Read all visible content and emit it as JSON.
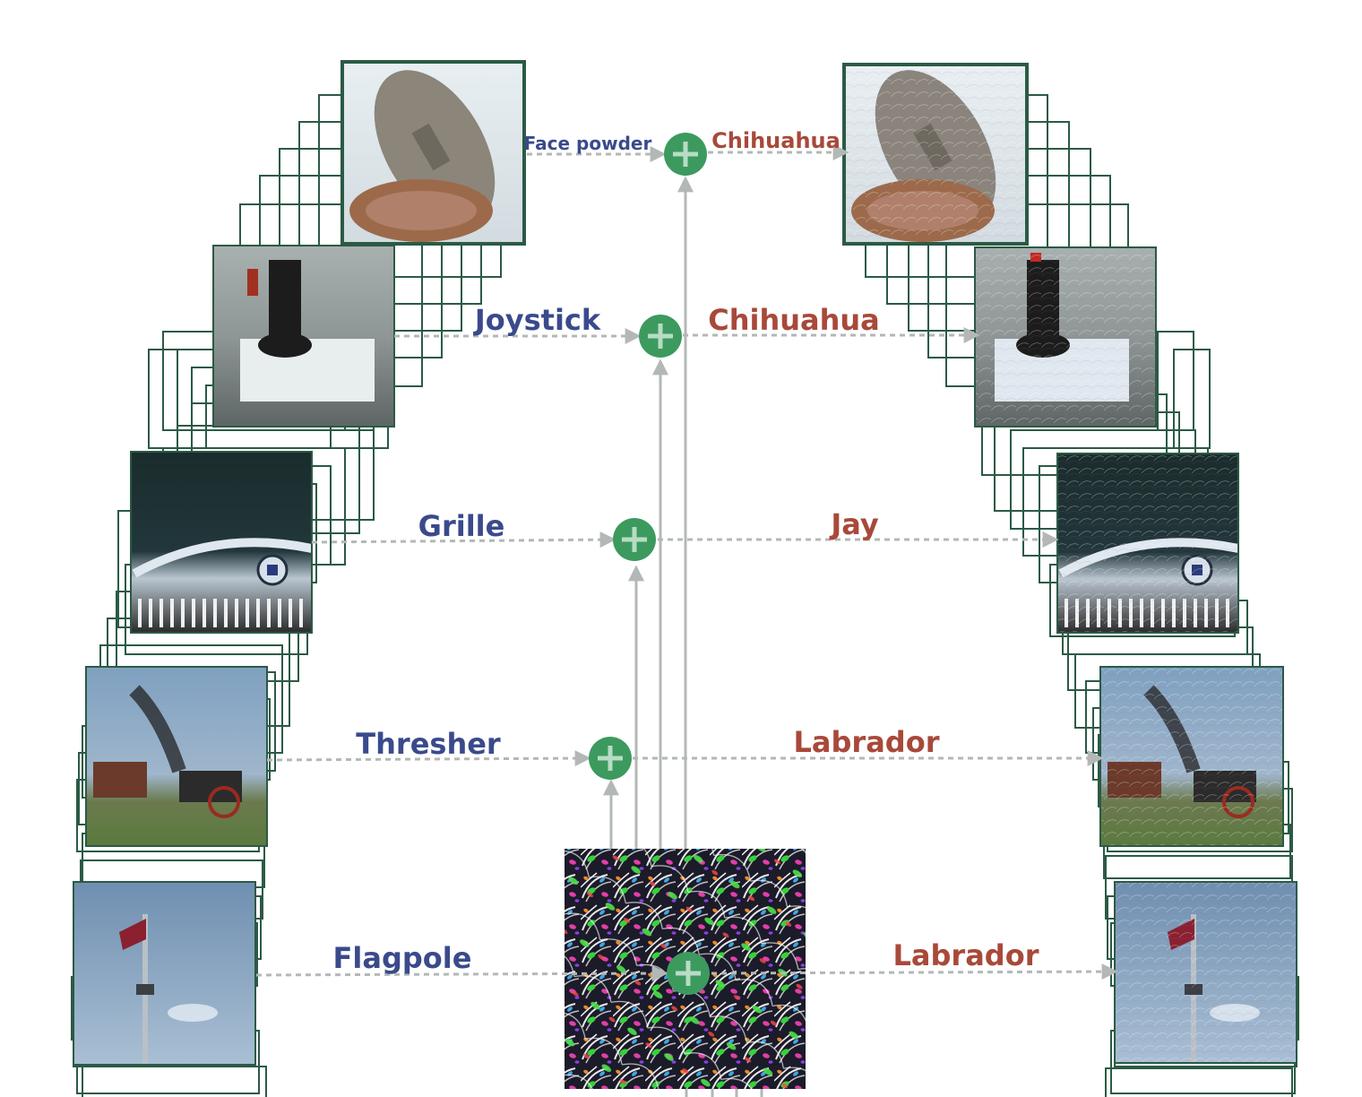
{
  "diagram": {
    "perturbation": {
      "description_icon": "universal-perturbation-noise"
    },
    "rows": [
      {
        "source_label": "Face powder",
        "target_label": "Chihuahua"
      },
      {
        "source_label": "Joystick",
        "target_label": "Chihuahua"
      },
      {
        "source_label": "Grille",
        "target_label": "Jay"
      },
      {
        "source_label": "Thresher",
        "target_label": "Labrador"
      },
      {
        "source_label": "Flagpole",
        "target_label": "Labrador"
      }
    ],
    "colors": {
      "source_label": "#3a4a8c",
      "target_label": "#a8493a",
      "frame": "#2b5a45",
      "arrow": "#b3b8b6",
      "plus_node": "#3c9a5f"
    },
    "icons": [
      "plus-icon",
      "arrow-icon"
    ]
  }
}
